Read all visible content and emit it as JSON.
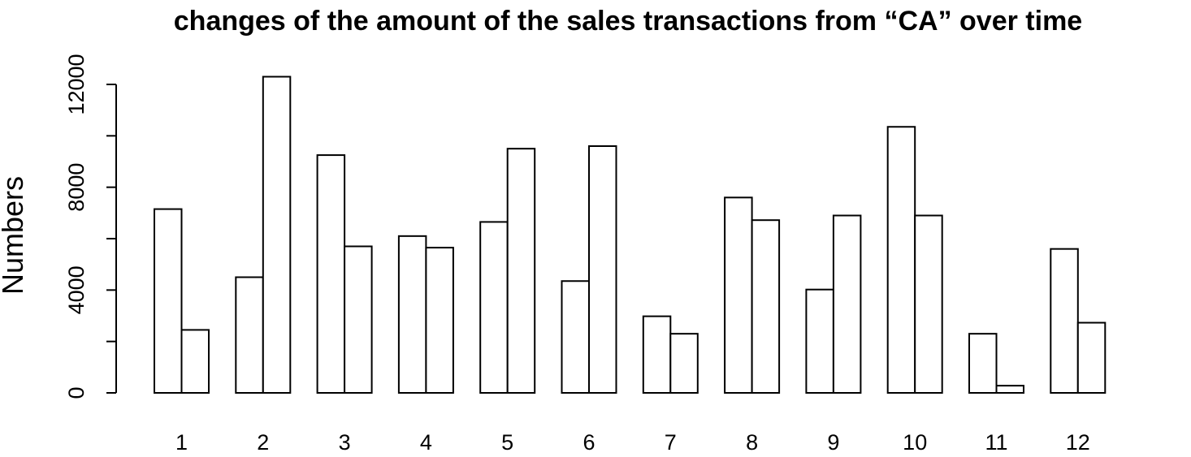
{
  "chart_data": {
    "type": "bar",
    "title": "changes of the amount of the sales transactions from “CA” over time",
    "ylabel": "Numbers",
    "xlabel": "",
    "categories": [
      "1",
      "2",
      "3",
      "4",
      "5",
      "6",
      "7",
      "8",
      "9",
      "10",
      "11",
      "12"
    ],
    "series": [
      {
        "values": [
          7150,
          4500,
          9250,
          6100,
          6650,
          4350,
          2980,
          7600,
          4020,
          10350,
          2300,
          5600
        ]
      },
      {
        "values": [
          2450,
          12300,
          5700,
          5650,
          9500,
          9600,
          2300,
          6720,
          6900,
          6900,
          280,
          2730
        ]
      }
    ],
    "ylim": [
      0,
      12000
    ],
    "yticks": [
      0,
      4000,
      8000,
      12000
    ],
    "ytick_labels": [
      "0",
      "4000",
      "8000",
      "12000"
    ],
    "grid": false,
    "bar_fill": "#ffffff",
    "bar_stroke": "#000000"
  }
}
